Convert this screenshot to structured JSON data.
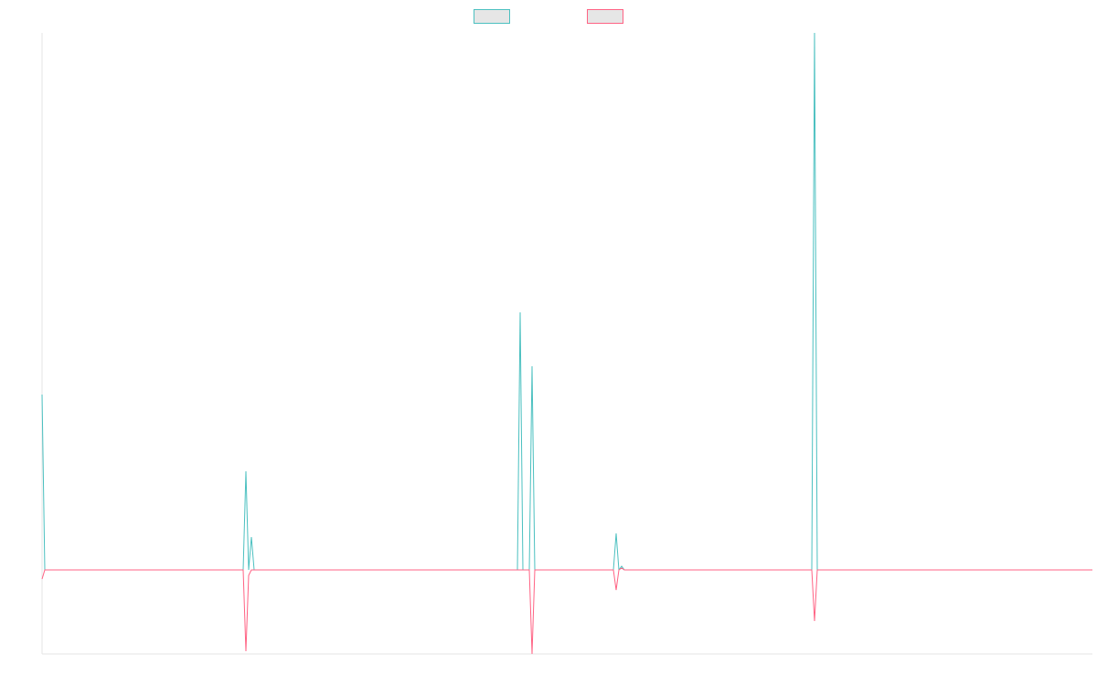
{
  "chart_data": {
    "type": "line",
    "x": [
      0,
      3,
      220,
      223,
      226,
      229,
      232,
      520,
      523,
      526,
      533,
      536,
      539,
      625,
      628,
      631,
      634,
      637,
      842,
      845,
      848,
      1149
    ],
    "series": [
      {
        "color": "#4bc0c0",
        "values": [
          192,
          0,
          0,
          108,
          0,
          36,
          0,
          0,
          282,
          0,
          0,
          223,
          0,
          0,
          40,
          0,
          4,
          0,
          0,
          588,
          0,
          0
        ]
      },
      {
        "color": "#ff6384",
        "values": [
          -10,
          0,
          0,
          -89,
          -6,
          0,
          0,
          0,
          0,
          0,
          0,
          -92,
          0,
          0,
          -22,
          0,
          2,
          0,
          0,
          -56,
          0,
          0
        ]
      }
    ],
    "xlim": [
      0,
      1149
    ],
    "ylim": [
      -92,
      588
    ],
    "grid": false,
    "legend": "top"
  }
}
